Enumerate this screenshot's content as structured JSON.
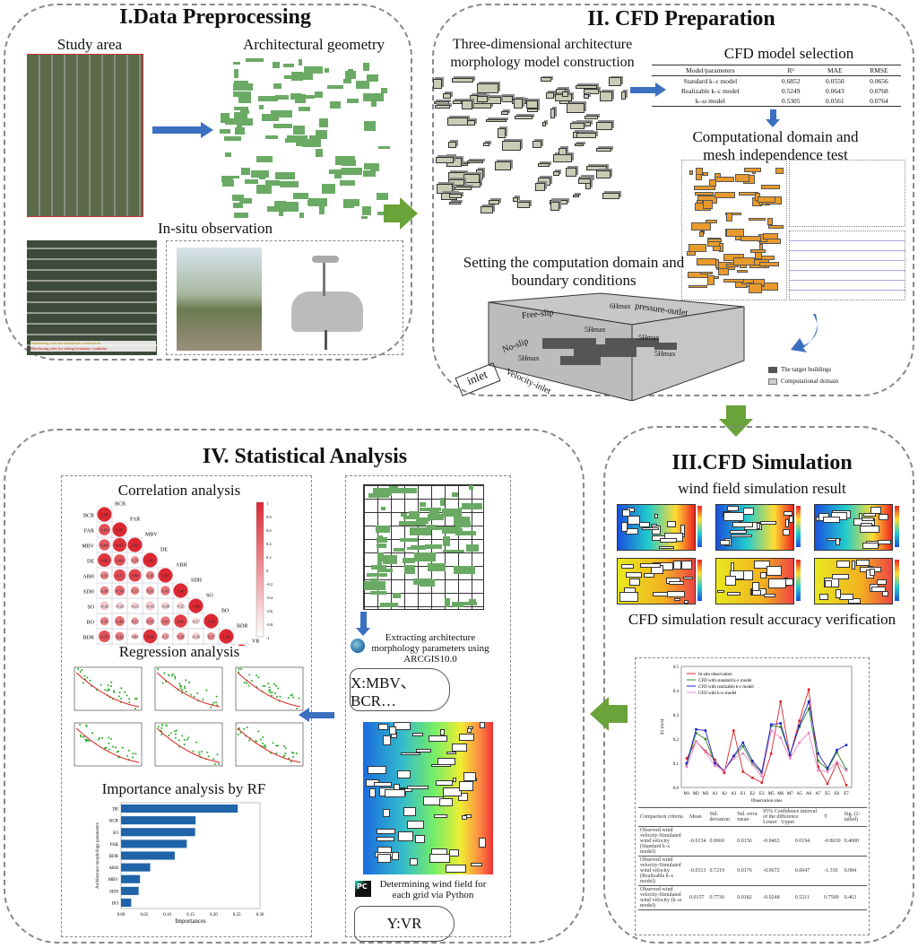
{
  "panel1": {
    "title": "I.Data Preprocessing",
    "study_area": "Study area",
    "geometry": "Architectural geometry",
    "insitu": "In-situ observation",
    "map_legend": [
      "Monitoring sites for simulation verification",
      "Monitoring sites for setting boundary condition"
    ]
  },
  "panel2": {
    "title": "II. CFD Preparation",
    "model_construction": "Three-dimensional architecture morphology model construction",
    "model_selection": "CFD model selection",
    "table": {
      "headers": [
        "Model/parameters",
        "R²",
        "MAE",
        "RMSE"
      ],
      "rows": [
        [
          "Standard k–ε model",
          "0.6852",
          "0.0550",
          "0.0656"
        ],
        [
          "Realizable k–ε model",
          "0.5249",
          "0.0643",
          "0.0768"
        ],
        [
          "k–ω model",
          "0.5305",
          "0.0561",
          "0.0764"
        ]
      ]
    },
    "mesh_test": "Computational domain and mesh independence test",
    "domain_setting": "Setting the computation domain and boundary conditions",
    "domain_labels": {
      "free_slip": "Free-slip",
      "no_slip": "No-slip",
      "pressure_outlet": "pressure-outlet",
      "velocity_inlet": "Velocity-inlet",
      "inlet": "inlet",
      "h6": "6Hmax",
      "h5a": "5Hmax",
      "h5b": "5Hmax",
      "h5c": "5Hmax",
      "h5d": "5Hmax"
    },
    "legend": [
      "The target buildings",
      "Computational domain"
    ]
  },
  "panel3": {
    "title": "III.CFD  Simulation",
    "wind_field": "wind field simulation result",
    "accuracy": "CFD simulation result accuracy verification",
    "table": {
      "headers": [
        "Comparison criteria",
        "Mean",
        "Std. deviation",
        "Std. error mean",
        "95% Confidence interval of the difference",
        "Lower",
        "Upper",
        "T",
        "Sig. (2-tailed)"
      ],
      "rows": [
        [
          "Observed wind velocity-Simulated wind velocity (Standard k–ε model)",
          "-0.0134",
          "0.0660",
          "0.0156",
          "-0.0463",
          "0.0194",
          "-0.8630",
          "0.4000"
        ],
        [
          "Observed wind velocity-Simulated wind velocity (Realizable k–ε model)",
          "-0.0313",
          "0.7219",
          "0.0176",
          "-0.0672",
          "0.0047",
          "-1.336",
          "0.084"
        ],
        [
          "Observed wind velocity-Simulated wind velocity (k–ω model)",
          "0.0157",
          "0.7730",
          "0.0182",
          "-0.0248",
          "0.5211",
          "0.7500",
          "0.463"
        ]
      ]
    }
  },
  "panel4": {
    "title": "IV. Statistical Analysis",
    "correlation": "Correlation analysis",
    "regression": "Regression analysis",
    "importance": "Importance analysis by RF",
    "extract": "Extracting architecture morphology parameters using ARCGIS10.0",
    "x_vars": "X:MBV、BCR…",
    "determine": "Determining wind field for each grid via Python",
    "y_var": "Y:VR"
  },
  "chart_data": [
    {
      "type": "heatmap",
      "title": "Correlation analysis",
      "labels": [
        "BCR",
        "FAR",
        "MBV",
        "DE",
        "ABH",
        "SDH",
        "SO",
        "BO",
        "BDR",
        "VR"
      ],
      "values": [
        [
          1.0
        ],
        [
          0.69,
          1.0
        ],
        [
          0.64,
          0.93,
          1.0
        ],
        [
          0.9,
          0.68,
          0.29,
          1.0
        ],
        [
          0.33,
          0.75,
          0.8,
          0.36,
          1.0
        ],
        [
          0.38,
          0.54,
          0.33,
          0.33,
          0.45,
          1.0
        ],
        [
          -0.42,
          -0.26,
          -0.23,
          -0.43,
          -0.28,
          -0.21,
          1.0
        ],
        [
          0.35,
          0.49,
          0.23,
          0.33,
          0.45,
          0.85,
          -0.17,
          1.0
        ],
        [
          0.7,
          0.41,
          0.044,
          0.94,
          0.17,
          0.28,
          -0.26,
          0.27,
          1.0
        ],
        [
          -0.7,
          -0.51,
          -0.27,
          -0.79,
          -0.23,
          -0.29,
          0.42,
          -0.16,
          -0.66,
          1.0
        ]
      ],
      "colorbar_ticks": [
        "1",
        "0.8",
        "0.6",
        "0.4",
        "0.2",
        "0",
        "-0.2",
        "-0.4",
        "-0.6",
        "-0.8",
        "-1"
      ]
    },
    {
      "type": "bar",
      "title": "Importance analysis by RF",
      "orientation": "horizontal",
      "categories": [
        "DE",
        "BCR",
        "SO",
        "FAR",
        "BDR",
        "ABH",
        "MBV",
        "SDH",
        "BO"
      ],
      "values": [
        0.252,
        0.161,
        0.16,
        0.142,
        0.116,
        0.063,
        0.041,
        0.038,
        0.022
      ],
      "xlabel": "Importances",
      "ylabel": "Architecture morphology parameters",
      "xlim": [
        0,
        0.3
      ],
      "xticks": [
        "0.00",
        "0.05",
        "0.10",
        "0.15",
        "0.20",
        "0.25",
        "0.30"
      ],
      "color": "#1f63a8"
    },
    {
      "type": "line",
      "xlabel": "Observation sites",
      "ylabel": "|U| (m/s)",
      "ylim": [
        0,
        0.5
      ],
      "yticks": [
        "0.0",
        "0.1",
        "0.2",
        "0.3",
        "0.4",
        "0.5"
      ],
      "categories": [
        "M1",
        "M2",
        "M3",
        "A1",
        "A2",
        "A3",
        "E1",
        "E2",
        "E3",
        "M5",
        "M6",
        "M7",
        "A5",
        "A6",
        "A7",
        "E5",
        "E6",
        "E7"
      ],
      "series": [
        {
          "name": "In-situ observation",
          "color": "#d62728",
          "values": [
            0.12,
            0.19,
            0.15,
            0.115,
            0.06,
            0.235,
            0.065,
            0.04,
            0.02,
            0.14,
            0.355,
            0.13,
            0.275,
            0.405,
            0.085,
            0.015,
            0.1,
            0.01
          ]
        },
        {
          "name": "CFD with standard k-ε model",
          "color": "#2a8a2a",
          "values": [
            0.095,
            0.225,
            0.2,
            0.1,
            0.07,
            0.125,
            0.17,
            0.1,
            0.06,
            0.255,
            0.25,
            0.135,
            0.25,
            0.325,
            0.11,
            0.075,
            0.145,
            0.075
          ]
        },
        {
          "name": "CFD with realizable k-ε model",
          "color": "#1f1fc8",
          "values": [
            0.1,
            0.24,
            0.235,
            0.1,
            0.07,
            0.13,
            0.185,
            0.11,
            0.065,
            0.26,
            0.265,
            0.135,
            0.255,
            0.355,
            0.14,
            0.08,
            0.155,
            0.175
          ]
        },
        {
          "name": "CFD with k-ω model",
          "color": "#ee82c8",
          "values": [
            0.085,
            0.19,
            0.145,
            0.09,
            0.07,
            0.12,
            0.14,
            0.095,
            0.045,
            0.235,
            0.205,
            0.12,
            0.185,
            0.225,
            0.07,
            0.065,
            0.105,
            0.07
          ]
        }
      ]
    }
  ],
  "colors": {
    "arrow_green": "#6aa33a",
    "arrow_blue": "#3b6fc0",
    "building_green": "#6aaa64",
    "building_orange": "#e89a2c"
  }
}
